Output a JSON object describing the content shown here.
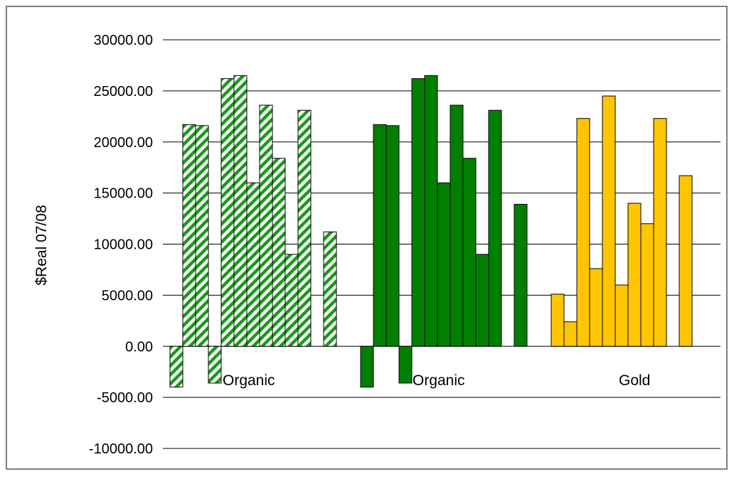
{
  "chart_data": {
    "type": "bar",
    "title": "",
    "xlabel": "",
    "ylabel": "$Real 07/08",
    "ylim": [
      -10000,
      30000
    ],
    "ytick_labels": [
      "-10000.00",
      "-5000.00",
      "0.00",
      "5000.00",
      "10000.00",
      "15000.00",
      "20000.00",
      "25000.00",
      "30000.00"
    ],
    "grid": true,
    "legend": "none",
    "groups": [
      {
        "label": "Organic",
        "color": "#1a9a1a",
        "pattern": "diagonal-hatch",
        "values": [
          -4000,
          21700,
          21600,
          -3600,
          26200,
          26500,
          16000,
          23600,
          18400,
          9000,
          23100,
          null,
          11200
        ]
      },
      {
        "label": "Organic",
        "color": "#007f00",
        "pattern": "solid",
        "values": [
          -4000,
          21700,
          21600,
          -3600,
          26200,
          26500,
          16000,
          23600,
          18400,
          9000,
          23100,
          null,
          13900
        ]
      },
      {
        "label": "Gold",
        "color": "#ffc600",
        "pattern": "solid",
        "values": [
          5100,
          2400,
          22300,
          7600,
          24500,
          6000,
          14000,
          12000,
          22300,
          null,
          16700
        ]
      }
    ]
  }
}
